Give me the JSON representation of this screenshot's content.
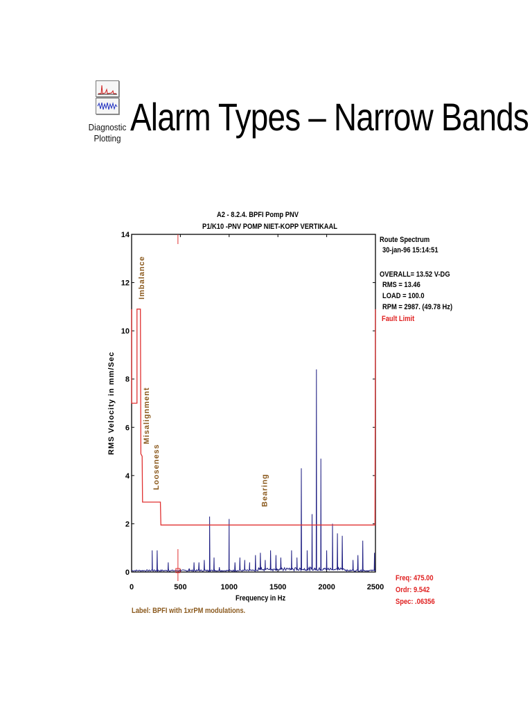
{
  "header": {
    "title": "Alarm Types – Narrow Bands",
    "app_icon": "diagnostic-plotting-icon",
    "app_label_line1": "Diagnostic",
    "app_label_line2": "Plotting"
  },
  "info": {
    "route": "Route Spectrum",
    "datetime": "30-jan-96  15:14:51",
    "overall": "OVERALL= 13.52 V-DG",
    "rms": "RMS =  13.46",
    "load": "LOAD = 100.0",
    "rpm": "RPM = 2987. (49.78 Hz)",
    "fault_limit": "Fault Limit"
  },
  "cursor": {
    "freq": "Freq:   475.00",
    "ordr": "Ordr:    9.542",
    "spec": "Spec:  .06356"
  },
  "label_note": "Label:  BPFI with 1xrPM modulations.",
  "colors": {
    "spectrum": "#1a1a80",
    "fault_limit": "#e03030",
    "annotation": "#8b5a1e",
    "cursor_text": "#e02020"
  },
  "chart_data": {
    "type": "line",
    "title_line1": "A2   - 8.2.4. BPFI Pomp PNV",
    "title_line2": "P1/K10    -PNV   POMP NIET-KOPP VERTIKAAL",
    "xlabel": "Frequency in Hz",
    "ylabel": "RMS Velocity in mm/Sec",
    "xlim": [
      0,
      2500
    ],
    "ylim": [
      0,
      14
    ],
    "xticks": [
      "0",
      "500",
      "1000",
      "1500",
      "2000",
      "2500"
    ],
    "yticks": [
      "0",
      "2",
      "4",
      "6",
      "8",
      "10",
      "12",
      "14"
    ],
    "cursor_x": 475,
    "annotations": [
      {
        "text": "Imbalance",
        "x": 100,
        "y": 11.3
      },
      {
        "text": "Misalignment",
        "x": 150,
        "y": 5.3
      },
      {
        "text": "Looseness",
        "x": 250,
        "y": 3.4
      },
      {
        "text": "Bearing",
        "x": 1360,
        "y": 2.7
      }
    ],
    "series": [
      {
        "name": "Fault Limit",
        "points": [
          [
            0,
            10.9
          ],
          [
            0,
            7.0
          ],
          [
            55,
            7.0
          ],
          [
            55,
            10.9
          ],
          [
            90,
            10.9
          ],
          [
            95,
            4.9
          ],
          [
            108,
            4.8
          ],
          [
            112,
            2.9
          ],
          [
            295,
            2.9
          ],
          [
            300,
            1.95
          ],
          [
            2495,
            1.95
          ],
          [
            2500,
            10.9
          ]
        ]
      },
      {
        "peaks": [
          [
            211,
            0.9
          ],
          [
            262,
            0.9
          ],
          [
            376,
            0.4
          ],
          [
            590,
            0.15
          ],
          [
            640,
            0.4
          ],
          [
            690,
            0.4
          ],
          [
            745,
            0.5
          ],
          [
            800,
            2.3
          ],
          [
            845,
            0.6
          ],
          [
            900,
            0.2
          ],
          [
            1000,
            2.2
          ],
          [
            1060,
            0.4
          ],
          [
            1110,
            0.6
          ],
          [
            1160,
            0.5
          ],
          [
            1210,
            0.4
          ],
          [
            1270,
            0.7
          ],
          [
            1320,
            0.8
          ],
          [
            1370,
            0.5
          ],
          [
            1425,
            0.9
          ],
          [
            1480,
            0.7
          ],
          [
            1530,
            0.6
          ],
          [
            1640,
            0.9
          ],
          [
            1695,
            0.6
          ],
          [
            1740,
            4.3
          ],
          [
            1800,
            0.9
          ],
          [
            1850,
            2.4
          ],
          [
            1895,
            8.4
          ],
          [
            1940,
            4.7
          ],
          [
            2000,
            0.9
          ],
          [
            2060,
            2.0
          ],
          [
            2110,
            1.6
          ],
          [
            2160,
            1.5
          ],
          [
            2270,
            0.5
          ],
          [
            2320,
            0.7
          ],
          [
            2370,
            1.3
          ],
          [
            2490,
            0.8
          ]
        ]
      }
    ]
  }
}
